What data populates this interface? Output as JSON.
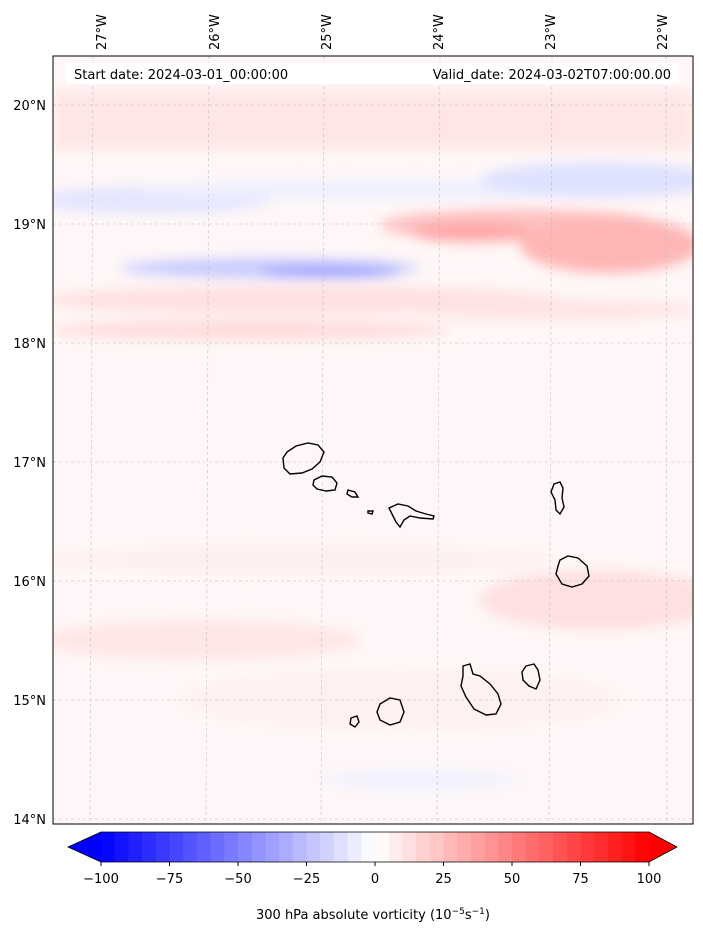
{
  "header": {
    "start_date": "Start date: 2024-03-01_00:00:00",
    "valid_date": "Valid_date: 2024-03-02T07:00:00.00"
  },
  "map": {
    "lon_labels": [
      "27°W",
      "26°W",
      "25°W",
      "24°W",
      "23°W",
      "22°W"
    ],
    "lat_labels": [
      "20°N",
      "19°N",
      "18°N",
      "17°N",
      "16°N",
      "15°N",
      "14°N"
    ],
    "gridlines": true,
    "field": "300 hPa absolute vorticity"
  },
  "colorbar": {
    "ticks": [
      "−100",
      "−75",
      "−50",
      "−25",
      "0",
      "25",
      "50",
      "75",
      "100"
    ],
    "label_main": "300 hPa absolute vorticity (10",
    "label_exp1": "−5",
    "label_mid": "s",
    "label_exp2": "−1",
    "label_end": ")",
    "range": [
      -100,
      100
    ],
    "extend": "both",
    "colors": {
      "negative": "#0000ff",
      "zero": "#ffffff",
      "positive": "#ff0000"
    }
  }
}
